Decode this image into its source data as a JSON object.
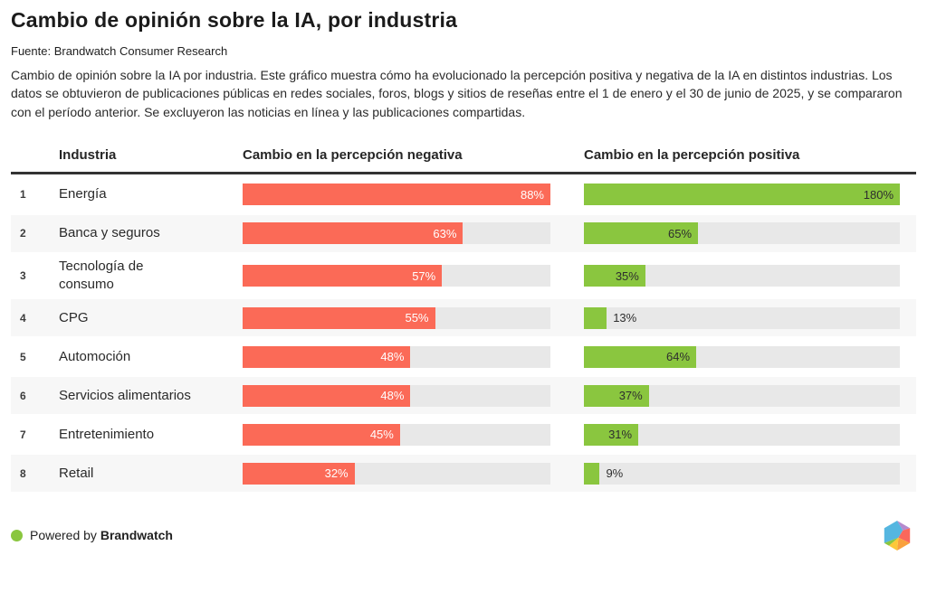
{
  "header": {
    "title": "Cambio de opinión sobre la IA, por industria",
    "source": "Fuente: Brandwatch Consumer Research",
    "description": "Cambio de opinión sobre la IA por industria. Este gráfico muestra cómo ha evolucionado la percepción positiva y negativa de la IA en distintos industrias. Los datos se obtuvieron de publicaciones públicas en redes sociales, foros, blogs y sitios de reseñas entre el 1 de enero y el 30 de junio de 2025, y se compararon con el período anterior. Se excluyeron las noticias en línea y las publicaciones compartidas."
  },
  "table": {
    "columns": [
      "Industria",
      "Cambio en la percepción negativa",
      "Cambio en la percepción positiva"
    ],
    "rows": [
      {
        "rank": "1",
        "industry": "Energía",
        "industry_display": "Energía",
        "negative": 88,
        "negative_label": "88%",
        "positive": 180,
        "positive_label": "180%"
      },
      {
        "rank": "2",
        "industry": "Banca y seguros",
        "industry_display": "Banca y seguros",
        "negative": 63,
        "negative_label": "63%",
        "positive": 65,
        "positive_label": "65%"
      },
      {
        "rank": "3",
        "industry": "Tecnología de consumo",
        "industry_display": "Tecnología de\nconsumo",
        "negative": 57,
        "negative_label": "57%",
        "positive": 35,
        "positive_label": "35%"
      },
      {
        "rank": "4",
        "industry": "CPG",
        "industry_display": "CPG",
        "negative": 55,
        "negative_label": "55%",
        "positive": 13,
        "positive_label": "13%"
      },
      {
        "rank": "5",
        "industry": "Automoción",
        "industry_display": "Automoción",
        "negative": 48,
        "negative_label": "48%",
        "positive": 64,
        "positive_label": "64%"
      },
      {
        "rank": "6",
        "industry": "Servicios alimentarios",
        "industry_display": "Servicios alimentarios",
        "negative": 48,
        "negative_label": "48%",
        "positive": 37,
        "positive_label": "37%"
      },
      {
        "rank": "7",
        "industry": "Entretenimiento",
        "industry_display": "Entretenimiento",
        "negative": 45,
        "negative_label": "45%",
        "positive": 31,
        "positive_label": "31%"
      },
      {
        "rank": "8",
        "industry": "Retail",
        "industry_display": "Retail",
        "negative": 32,
        "negative_label": "32%",
        "positive": 9,
        "positive_label": "9%"
      }
    ]
  },
  "chart_data": {
    "type": "bar",
    "title": "Cambio de opinión sobre la IA, por industria",
    "categories": [
      "Energía",
      "Banca y seguros",
      "Tecnología de consumo",
      "CPG",
      "Automoción",
      "Servicios alimentarios",
      "Entretenimiento",
      "Retail"
    ],
    "series": [
      {
        "name": "Cambio en la percepción negativa",
        "values": [
          88,
          63,
          57,
          55,
          48,
          48,
          45,
          32
        ],
        "color": "#fb6a57"
      },
      {
        "name": "Cambio en la percepción positiva",
        "values": [
          180,
          65,
          35,
          13,
          64,
          37,
          31,
          9
        ],
        "color": "#8ac63f"
      }
    ],
    "value_suffix": "%",
    "negative_axis_max": 88,
    "positive_axis_max": 180,
    "layout": "horizontal bars, one track per cell, each column scaled to its own max, labels right-aligned inside bars (outside when bar too short)"
  },
  "footer": {
    "powered_by": "Powered by",
    "brand": "Brandwatch"
  },
  "colors": {
    "negative_bar": "#fb6a57",
    "positive_bar": "#8ac63f",
    "bar_track": "#e8e8e8",
    "alt_row_background": "#f7f7f7",
    "header_rule": "#333333",
    "footer_dot": "#8ac63f"
  }
}
